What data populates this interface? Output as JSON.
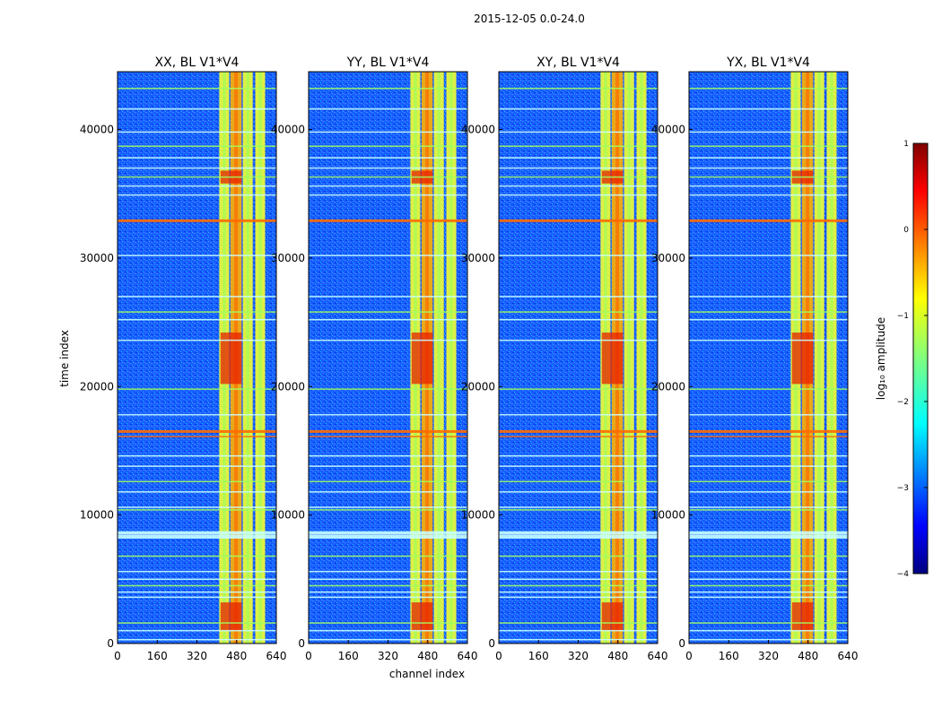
{
  "chart_data": {
    "type": "heatmap",
    "title": "2015-12-05 0.0-24.0",
    "xlabel": "channel index",
    "ylabel": "time index",
    "xlim": [
      0,
      640
    ],
    "ylim": [
      0,
      44500
    ],
    "xticks": [
      "0",
      "160",
      "320",
      "480",
      "640"
    ],
    "yticks": [
      "0",
      "10000",
      "20000",
      "30000",
      "40000"
    ],
    "panels": [
      {
        "title": "XX, BL V1*V4"
      },
      {
        "title": "YY, BL V1*V4"
      },
      {
        "title": "XY, BL V1*V4"
      },
      {
        "title": "YX, BL V1*V4"
      }
    ],
    "colorbar": {
      "label": "log₁₀ amplitude",
      "range": [
        -4,
        1
      ],
      "ticks": [
        "1",
        "0",
        "−1",
        "−2",
        "−3",
        "−4"
      ],
      "colormap": "jet"
    },
    "bright_channel_bands": [
      [
        410,
        450
      ],
      [
        455,
        500
      ],
      [
        505,
        545
      ],
      [
        555,
        595
      ]
    ],
    "rfi_time_rows": [
      43200,
      41600,
      39800,
      38700,
      37800,
      37000,
      36300,
      35600,
      34900,
      32900,
      30200,
      27000,
      25800,
      25200,
      23600,
      19800,
      17800,
      16500,
      16100,
      14600,
      13800,
      12600,
      11800,
      10600,
      10400,
      8600,
      8300,
      6800,
      5600,
      5000,
      4500,
      4000,
      3600,
      1600,
      1000,
      300
    ]
  }
}
